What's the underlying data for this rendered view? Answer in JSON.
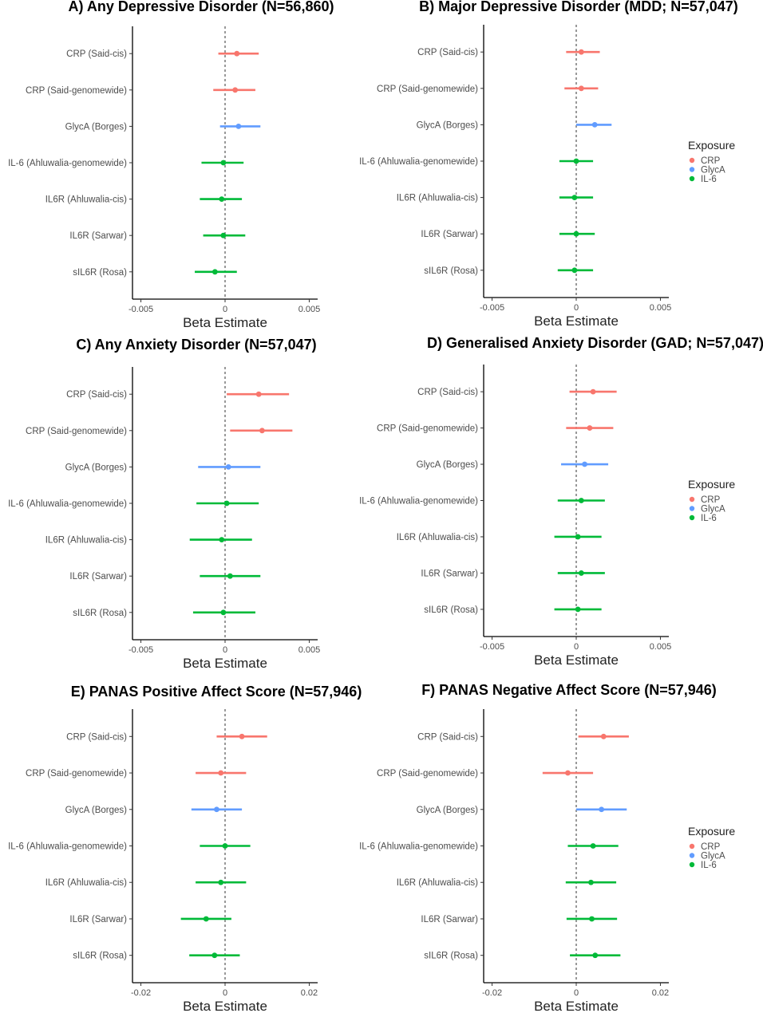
{
  "figure": {
    "title": "",
    "legend": {
      "title": "Exposure",
      "items": [
        {
          "label": "CRP",
          "color": "#F8766D"
        },
        {
          "label": "GlycA",
          "color": "#619CFF"
        },
        {
          "label": "IL-6",
          "color": "#00BA38"
        }
      ]
    }
  },
  "chart_data": [
    {
      "type": "forest",
      "title": "A) Any Depressive Disorder (N=56,860)",
      "xlabel": "Beta Estimate",
      "xlim": [
        -0.0055,
        0.0055
      ],
      "xticks": [
        -0.005,
        0,
        0.005
      ],
      "xtick_labels": [
        "-0.005",
        "0",
        "0.005"
      ],
      "reference_line": 0,
      "rows": [
        {
          "label": "CRP (Said-cis)",
          "exposure": "CRP",
          "estimate": 0.0007,
          "lower": -0.0004,
          "upper": 0.002
        },
        {
          "label": "CRP (Said-genomewide)",
          "exposure": "CRP",
          "estimate": 0.0006,
          "lower": -0.0007,
          "upper": 0.0018
        },
        {
          "label": "GlycA (Borges)",
          "exposure": "GlycA",
          "estimate": 0.0008,
          "lower": -0.0003,
          "upper": 0.0021
        },
        {
          "label": "IL-6 (Ahluwalia-genomewide)",
          "exposure": "IL-6",
          "estimate": -0.0001,
          "lower": -0.0014,
          "upper": 0.0011
        },
        {
          "label": "IL6R (Ahluwalia-cis)",
          "exposure": "IL-6",
          "estimate": -0.0002,
          "lower": -0.0015,
          "upper": 0.001
        },
        {
          "label": "IL6R (Sarwar)",
          "exposure": "IL-6",
          "estimate": -0.0001,
          "lower": -0.0013,
          "upper": 0.0012
        },
        {
          "label": "sIL6R (Rosa)",
          "exposure": "IL-6",
          "estimate": -0.0006,
          "lower": -0.0018,
          "upper": 0.0007
        }
      ]
    },
    {
      "type": "forest",
      "title": "B) Major Depressive Disorder (MDD; N=57,047)",
      "xlabel": "Beta Estimate",
      "xlim": [
        -0.0055,
        0.0055
      ],
      "xticks": [
        -0.005,
        0,
        0.005
      ],
      "xtick_labels": [
        "-0.005",
        "0",
        "0.005"
      ],
      "reference_line": 0,
      "rows": [
        {
          "label": "CRP (Said-cis)",
          "exposure": "CRP",
          "estimate": 0.0003,
          "lower": -0.0006,
          "upper": 0.0014
        },
        {
          "label": "CRP (Said-genomewide)",
          "exposure": "CRP",
          "estimate": 0.0003,
          "lower": -0.0007,
          "upper": 0.0013
        },
        {
          "label": "GlycA (Borges)",
          "exposure": "GlycA",
          "estimate": 0.0011,
          "lower": 0.0,
          "upper": 0.0021
        },
        {
          "label": "IL-6 (Ahluwalia-genomewide)",
          "exposure": "IL-6",
          "estimate": 0.0,
          "lower": -0.001,
          "upper": 0.001
        },
        {
          "label": "IL6R (Ahluwalia-cis)",
          "exposure": "IL-6",
          "estimate": -0.0001,
          "lower": -0.001,
          "upper": 0.001
        },
        {
          "label": "IL6R (Sarwar)",
          "exposure": "IL-6",
          "estimate": 0.0,
          "lower": -0.001,
          "upper": 0.0011
        },
        {
          "label": "sIL6R (Rosa)",
          "exposure": "IL-6",
          "estimate": -0.0001,
          "lower": -0.0011,
          "upper": 0.001
        }
      ]
    },
    {
      "type": "forest",
      "title": "C) Any Anxiety Disorder (N=57,047)",
      "xlabel": "Beta Estimate",
      "xlim": [
        -0.0055,
        0.0055
      ],
      "xticks": [
        -0.005,
        0,
        0.005
      ],
      "xtick_labels": [
        "-0.005",
        "0",
        "0.005"
      ],
      "reference_line": 0,
      "rows": [
        {
          "label": "CRP (Said-cis)",
          "exposure": "CRP",
          "estimate": 0.002,
          "lower": 0.0001,
          "upper": 0.0038
        },
        {
          "label": "CRP (Said-genomewide)",
          "exposure": "CRP",
          "estimate": 0.0022,
          "lower": 0.0003,
          "upper": 0.004
        },
        {
          "label": "GlycA (Borges)",
          "exposure": "GlycA",
          "estimate": 0.0002,
          "lower": -0.0016,
          "upper": 0.0021
        },
        {
          "label": "IL-6 (Ahluwalia-genomewide)",
          "exposure": "IL-6",
          "estimate": 0.0001,
          "lower": -0.0017,
          "upper": 0.002
        },
        {
          "label": "IL6R (Ahluwalia-cis)",
          "exposure": "IL-6",
          "estimate": -0.0002,
          "lower": -0.0021,
          "upper": 0.0016
        },
        {
          "label": "IL6R (Sarwar)",
          "exposure": "IL-6",
          "estimate": 0.0003,
          "lower": -0.0015,
          "upper": 0.0021
        },
        {
          "label": "sIL6R (Rosa)",
          "exposure": "IL-6",
          "estimate": -0.0001,
          "lower": -0.0019,
          "upper": 0.0018
        }
      ]
    },
    {
      "type": "forest",
      "title": "D) Generalised Anxiety Disorder (GAD; N=57,047)",
      "xlabel": "Beta Estimate",
      "xlim": [
        -0.0055,
        0.0055
      ],
      "xticks": [
        -0.005,
        0,
        0.005
      ],
      "xtick_labels": [
        "-0.005",
        "0",
        "0.005"
      ],
      "reference_line": 0,
      "rows": [
        {
          "label": "CRP (Said-cis)",
          "exposure": "CRP",
          "estimate": 0.001,
          "lower": -0.0004,
          "upper": 0.0024
        },
        {
          "label": "CRP (Said-genomewide)",
          "exposure": "CRP",
          "estimate": 0.0008,
          "lower": -0.0006,
          "upper": 0.0022
        },
        {
          "label": "GlycA (Borges)",
          "exposure": "GlycA",
          "estimate": 0.0005,
          "lower": -0.0009,
          "upper": 0.0019
        },
        {
          "label": "IL-6 (Ahluwalia-genomewide)",
          "exposure": "IL-6",
          "estimate": 0.0003,
          "lower": -0.0011,
          "upper": 0.0017
        },
        {
          "label": "IL6R (Ahluwalia-cis)",
          "exposure": "IL-6",
          "estimate": 0.0001,
          "lower": -0.0013,
          "upper": 0.0015
        },
        {
          "label": "IL6R (Sarwar)",
          "exposure": "IL-6",
          "estimate": 0.0003,
          "lower": -0.0011,
          "upper": 0.0017
        },
        {
          "label": "sIL6R (Rosa)",
          "exposure": "IL-6",
          "estimate": 0.0001,
          "lower": -0.0013,
          "upper": 0.0015
        }
      ]
    },
    {
      "type": "forest",
      "title": "E) PANAS Positive Affect Score (N=57,946)",
      "xlabel": "Beta Estimate",
      "xlim": [
        -0.022,
        0.022
      ],
      "xticks": [
        -0.02,
        0,
        0.02
      ],
      "xtick_labels": [
        "-0.02",
        "0",
        "0.02"
      ],
      "reference_line": 0,
      "rows": [
        {
          "label": "CRP (Said-cis)",
          "exposure": "CRP",
          "estimate": 0.004,
          "lower": -0.002,
          "upper": 0.01
        },
        {
          "label": "CRP (Said-genomewide)",
          "exposure": "CRP",
          "estimate": -0.001,
          "lower": -0.007,
          "upper": 0.005
        },
        {
          "label": "GlycA (Borges)",
          "exposure": "GlycA",
          "estimate": -0.002,
          "lower": -0.008,
          "upper": 0.004
        },
        {
          "label": "IL-6 (Ahluwalia-genomewide)",
          "exposure": "IL-6",
          "estimate": 0.0,
          "lower": -0.006,
          "upper": 0.006
        },
        {
          "label": "IL6R (Ahluwalia-cis)",
          "exposure": "IL-6",
          "estimate": -0.001,
          "lower": -0.007,
          "upper": 0.005
        },
        {
          "label": "IL6R (Sarwar)",
          "exposure": "IL-6",
          "estimate": -0.0045,
          "lower": -0.0105,
          "upper": 0.0015
        },
        {
          "label": "sIL6R (Rosa)",
          "exposure": "IL-6",
          "estimate": -0.0025,
          "lower": -0.0085,
          "upper": 0.0035
        }
      ]
    },
    {
      "type": "forest",
      "title": "F) PANAS Negative Affect Score (N=57,946)",
      "xlabel": "Beta Estimate",
      "xlim": [
        -0.022,
        0.022
      ],
      "xticks": [
        -0.02,
        0,
        0.02
      ],
      "xtick_labels": [
        "-0.02",
        "0",
        "0.02"
      ],
      "reference_line": 0,
      "rows": [
        {
          "label": "CRP (Said-cis)",
          "exposure": "CRP",
          "estimate": 0.0065,
          "lower": 0.0005,
          "upper": 0.0125
        },
        {
          "label": "CRP (Said-genomewide)",
          "exposure": "CRP",
          "estimate": -0.002,
          "lower": -0.008,
          "upper": 0.004
        },
        {
          "label": "GlycA (Borges)",
          "exposure": "GlycA",
          "estimate": 0.006,
          "lower": 0.0,
          "upper": 0.012
        },
        {
          "label": "IL-6 (Ahluwalia-genomewide)",
          "exposure": "IL-6",
          "estimate": 0.004,
          "lower": -0.002,
          "upper": 0.01
        },
        {
          "label": "IL6R (Ahluwalia-cis)",
          "exposure": "IL-6",
          "estimate": 0.0035,
          "lower": -0.0025,
          "upper": 0.0095
        },
        {
          "label": "IL6R (Sarwar)",
          "exposure": "IL-6",
          "estimate": 0.0037,
          "lower": -0.0023,
          "upper": 0.0097
        },
        {
          "label": "sIL6R (Rosa)",
          "exposure": "IL-6",
          "estimate": 0.0045,
          "lower": -0.0015,
          "upper": 0.0105
        }
      ]
    }
  ]
}
